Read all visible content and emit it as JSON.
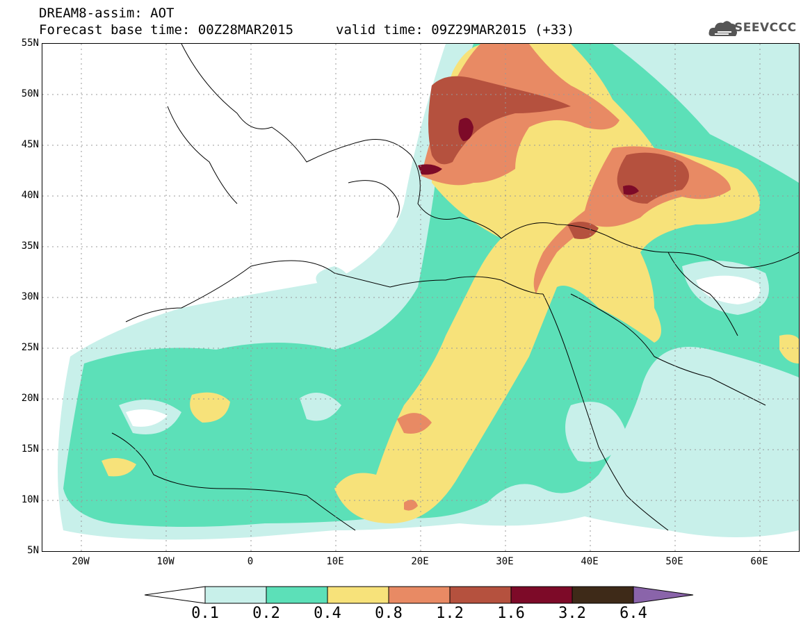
{
  "header": {
    "line1": "DREAM8-assim: AOT",
    "line2": "Forecast base time: 00Z28MAR2015",
    "line3": "valid time: 09Z29MAR2015 (+33)"
  },
  "logo": {
    "text": "SEEVCCC",
    "icon": "cloud-icon"
  },
  "axes": {
    "lat_labels": [
      "55N",
      "50N",
      "45N",
      "40N",
      "35N",
      "30N",
      "25N",
      "20N",
      "15N",
      "10N",
      "5N"
    ],
    "lon_labels": [
      "20W",
      "10W",
      "0",
      "10E",
      "20E",
      "30E",
      "40E",
      "50E",
      "60E"
    ]
  },
  "colorbar": {
    "levels": [
      "0.1",
      "0.2",
      "0.4",
      "0.8",
      "1.2",
      "1.6",
      "3.2",
      "6.4"
    ],
    "colors": [
      "#ffffff",
      "#c8f0ea",
      "#5ce0b8",
      "#f7e27a",
      "#e88a64",
      "#b5513e",
      "#7d0a28",
      "#3e2a18",
      "#8a64aa"
    ]
  }
}
